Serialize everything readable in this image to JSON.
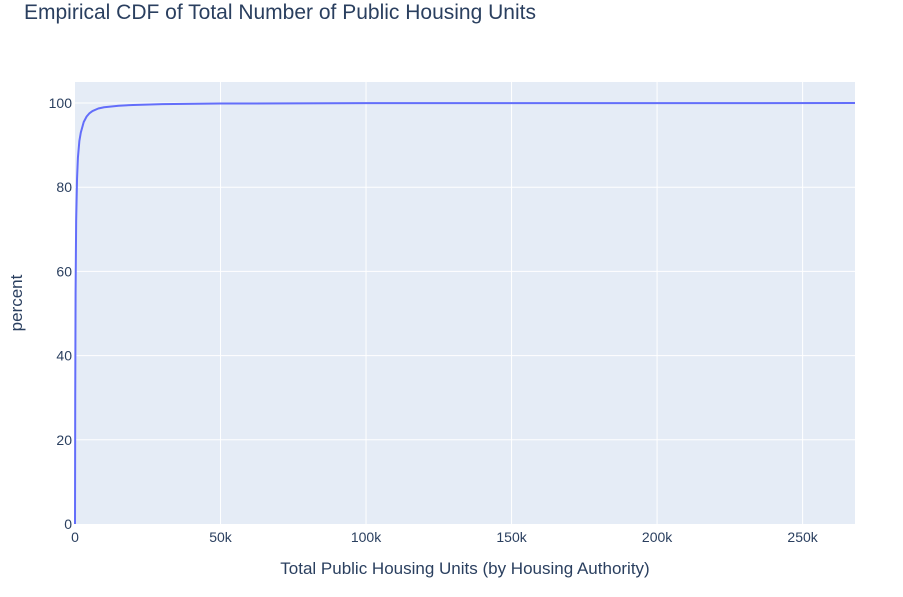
{
  "chart_data": {
    "type": "line",
    "title": "Empirical CDF of Total Number of Public Housing Units",
    "xlabel": "Total Public Housing Units (by Housing Authority)",
    "ylabel": "percent",
    "xlim": [
      0,
      268000
    ],
    "ylim": [
      0,
      105
    ],
    "grid": true,
    "x_ticks": [
      {
        "value": 0,
        "label": "0"
      },
      {
        "value": 50000,
        "label": "50k"
      },
      {
        "value": 100000,
        "label": "100k"
      },
      {
        "value": 150000,
        "label": "150k"
      },
      {
        "value": 200000,
        "label": "200k"
      },
      {
        "value": 250000,
        "label": "250k"
      }
    ],
    "y_ticks": [
      {
        "value": 0,
        "label": "0"
      },
      {
        "value": 20,
        "label": "20"
      },
      {
        "value": 40,
        "label": "40"
      },
      {
        "value": 60,
        "label": "60"
      },
      {
        "value": 80,
        "label": "80"
      },
      {
        "value": 100,
        "label": "100"
      }
    ],
    "series": [
      {
        "color": "#636efa",
        "x": [
          0,
          80,
          200,
          400,
          700,
          1000,
          1500,
          2000,
          3000,
          4000,
          5000,
          6000,
          8000,
          10000,
          15000,
          20000,
          30000,
          50000,
          100000,
          268000
        ],
        "y": [
          0,
          30,
          55,
          72,
          82,
          87,
          91,
          93,
          95.5,
          96.8,
          97.6,
          98.1,
          98.7,
          99.0,
          99.35,
          99.55,
          99.75,
          99.88,
          99.97,
          100
        ]
      }
    ]
  }
}
